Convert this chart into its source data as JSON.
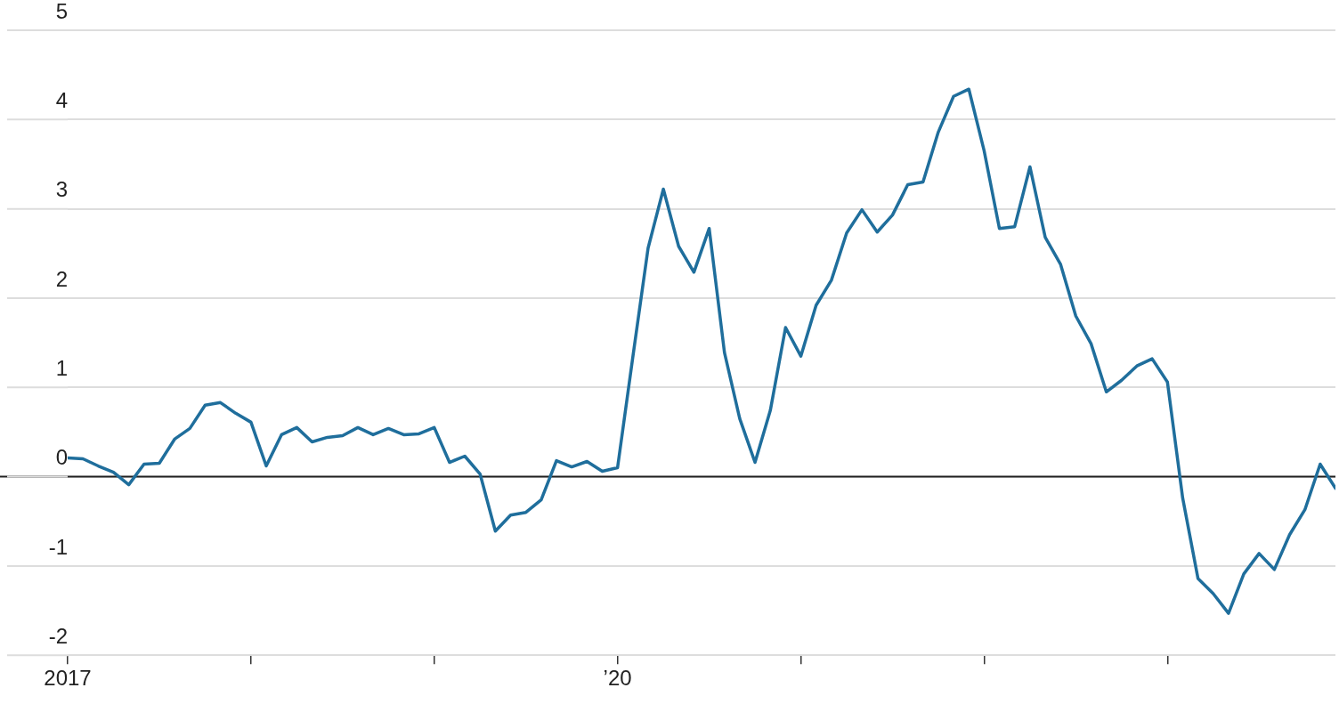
{
  "chart_data": {
    "type": "line",
    "x": [
      "2017-01",
      "2017-02",
      "2017-03",
      "2017-04",
      "2017-05",
      "2017-06",
      "2017-07",
      "2017-08",
      "2017-09",
      "2017-10",
      "2017-11",
      "2017-12",
      "2018-01",
      "2018-02",
      "2018-03",
      "2018-04",
      "2018-05",
      "2018-06",
      "2018-07",
      "2018-08",
      "2018-09",
      "2018-10",
      "2018-11",
      "2018-12",
      "2019-01",
      "2019-02",
      "2019-03",
      "2019-04",
      "2019-05",
      "2019-06",
      "2019-07",
      "2019-08",
      "2019-09",
      "2019-10",
      "2019-11",
      "2019-12",
      "2020-01",
      "2020-02",
      "2020-03",
      "2020-04",
      "2020-05",
      "2020-06",
      "2020-07",
      "2020-08",
      "2020-09",
      "2020-10",
      "2020-11",
      "2020-12",
      "2021-01",
      "2021-02",
      "2021-03",
      "2021-04",
      "2021-05",
      "2021-06",
      "2021-07",
      "2021-08",
      "2021-09",
      "2021-10",
      "2021-11",
      "2021-12",
      "2022-01",
      "2022-02",
      "2022-03",
      "2022-04",
      "2022-05",
      "2022-06",
      "2022-07",
      "2022-08",
      "2022-09",
      "2022-10",
      "2022-11",
      "2022-12",
      "2023-01",
      "2023-02",
      "2023-03",
      "2023-04",
      "2023-05",
      "2023-06",
      "2023-07",
      "2023-08",
      "2023-09",
      "2023-10",
      "2023-11",
      "2023-12"
    ],
    "series": [
      {
        "color": "#1f6e9c",
        "values": [
          0.21,
          0.2,
          0.12,
          0.05,
          -0.09,
          0.14,
          0.15,
          0.42,
          0.54,
          0.8,
          0.83,
          0.71,
          0.61,
          0.12,
          0.47,
          0.55,
          0.39,
          0.44,
          0.46,
          0.55,
          0.47,
          0.54,
          0.47,
          0.48,
          0.55,
          0.16,
          0.23,
          0.03,
          -0.61,
          -0.43,
          -0.4,
          -0.26,
          0.18,
          0.11,
          0.17,
          0.06,
          0.1,
          1.34,
          2.56,
          3.22,
          2.58,
          2.29,
          2.78,
          1.39,
          0.65,
          0.16,
          0.74,
          1.67,
          1.35,
          1.92,
          2.2,
          2.73,
          2.99,
          2.74,
          2.93,
          3.27,
          3.3,
          3.86,
          4.26,
          4.34,
          3.65,
          2.78,
          2.8,
          3.47,
          2.68,
          2.38,
          1.8,
          1.49,
          0.95,
          1.08,
          1.24,
          1.32,
          1.06,
          -0.24,
          -1.14,
          -1.31,
          -1.53,
          -1.09,
          -0.86,
          -1.04,
          -0.65,
          -0.37,
          0.14,
          -0.13
        ]
      }
    ],
    "xlim": [
      "2017-01",
      "2023-12"
    ],
    "xticks": [
      {
        "value": "2017-01",
        "label": "2017"
      },
      {
        "value": "2018-01",
        "label": null
      },
      {
        "value": "2019-01",
        "label": null
      },
      {
        "value": "2020-01",
        "label": "’20"
      },
      {
        "value": "2021-01",
        "label": null
      },
      {
        "value": "2022-01",
        "label": null
      },
      {
        "value": "2023-01",
        "label": null
      }
    ],
    "ylim": [
      -2,
      5
    ],
    "yticks": [
      -2,
      -1,
      0,
      1,
      2,
      3,
      4,
      5
    ],
    "grid": "y",
    "marker": "none",
    "line_style": "solid",
    "legend": false,
    "ref_lines": [
      {
        "axis": "y",
        "value": 0,
        "color": "#222222"
      }
    ]
  }
}
